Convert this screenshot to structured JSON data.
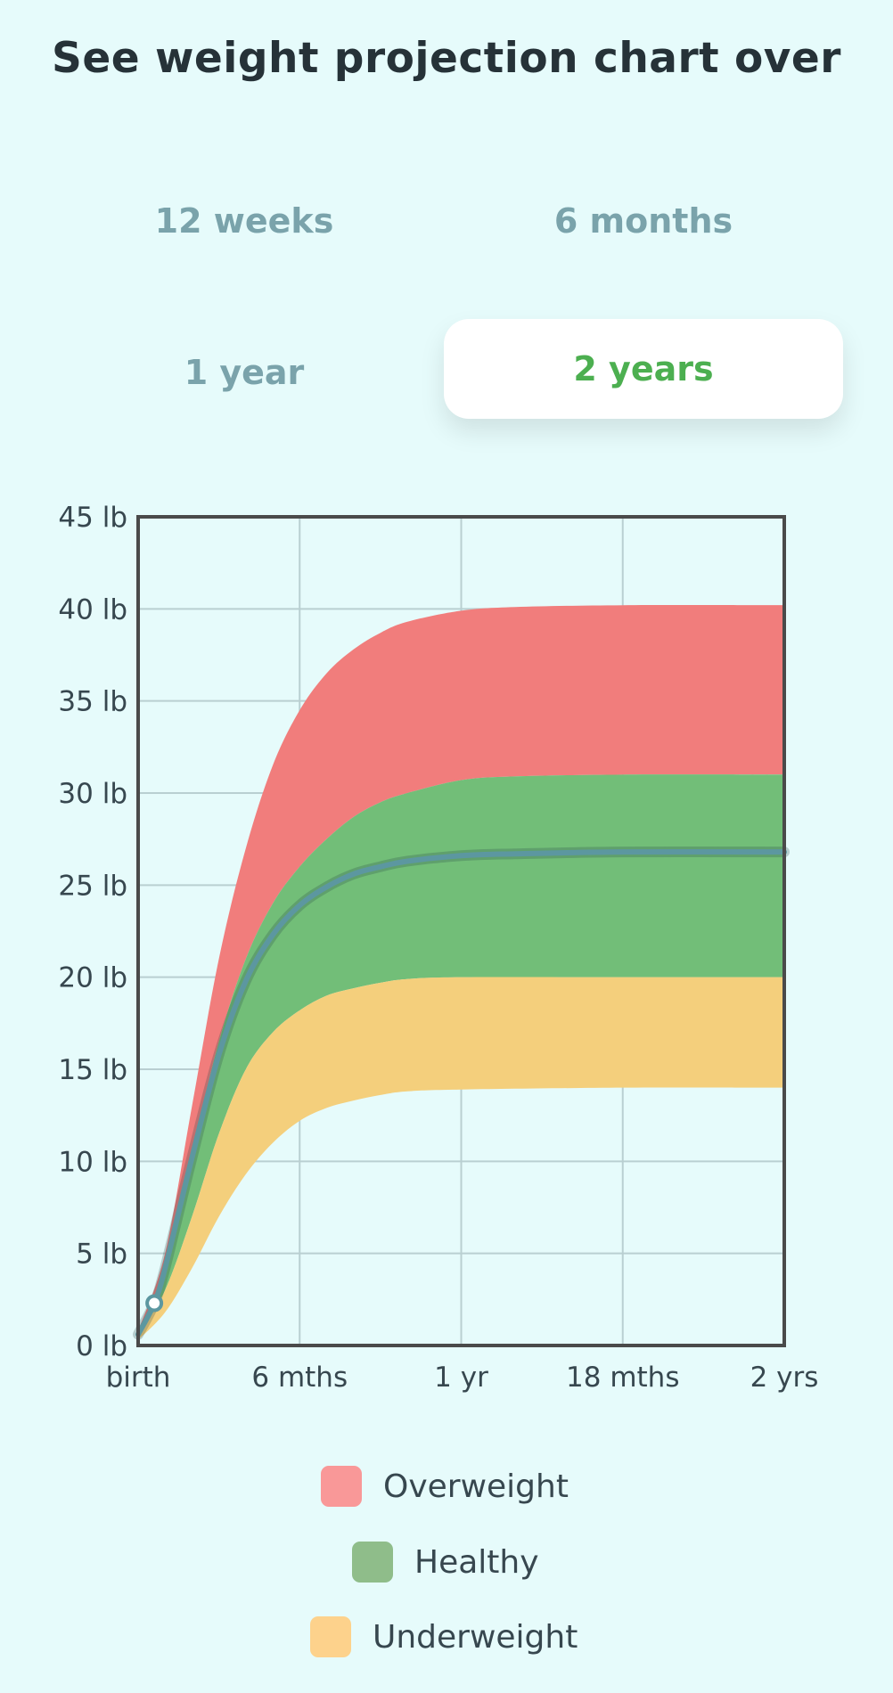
{
  "title": "See weight projection chart over",
  "tabs": [
    {
      "label": "12 weeks",
      "selected": false
    },
    {
      "label": "6 months",
      "selected": false
    },
    {
      "label": "1 year",
      "selected": false
    },
    {
      "label": "2 years",
      "selected": true
    }
  ],
  "colors": {
    "background": "#e6fbfb",
    "overweight": "#f17d7c",
    "healthy": "#72be78",
    "underweight": "#f4cf7c",
    "line": "#5c97a0",
    "selected_tab_text": "#4caf50",
    "tab_text": "#7aa3ab"
  },
  "chart_data": {
    "type": "area",
    "x_ticks": [
      "birth",
      "6 mths",
      "1 yr",
      "18 mths",
      "2 yrs"
    ],
    "y_ticks": [
      "0 lb",
      "5 lb",
      "10 lb",
      "15 lb",
      "20 lb",
      "25 lb",
      "30 lb",
      "35 lb",
      "40 lb",
      "45 lb"
    ],
    "xlim": [
      0,
      24
    ],
    "ylim": [
      0,
      45
    ],
    "grid": true,
    "legend_position": "bottom",
    "series": [
      {
        "name": "Overweight",
        "color": "#f17d7c",
        "points": [
          [
            0,
            0.8
          ],
          [
            1,
            5
          ],
          [
            2,
            13
          ],
          [
            3,
            21
          ],
          [
            4,
            27
          ],
          [
            5,
            31.5
          ],
          [
            6,
            34.5
          ],
          [
            7,
            36.5
          ],
          [
            8,
            37.8
          ],
          [
            9,
            38.7
          ],
          [
            10,
            39.3
          ],
          [
            12,
            39.9
          ],
          [
            14,
            40.1
          ],
          [
            18,
            40.2
          ],
          [
            24,
            40.2
          ]
        ]
      },
      {
        "name": "Healthy",
        "color": "#72be78",
        "points": [
          [
            0,
            0.6
          ],
          [
            1,
            4
          ],
          [
            2,
            10.5
          ],
          [
            3,
            16.5
          ],
          [
            4,
            21
          ],
          [
            5,
            24
          ],
          [
            6,
            26
          ],
          [
            7,
            27.5
          ],
          [
            8,
            28.7
          ],
          [
            9,
            29.5
          ],
          [
            10,
            30
          ],
          [
            12,
            30.7
          ],
          [
            14,
            30.9
          ],
          [
            18,
            31
          ],
          [
            24,
            31
          ]
        ]
      },
      {
        "name": "Underweight",
        "color": "#f4cf7c",
        "points": [
          [
            0,
            0.5
          ],
          [
            1,
            3
          ],
          [
            2,
            7
          ],
          [
            3,
            11.5
          ],
          [
            4,
            15
          ],
          [
            5,
            17
          ],
          [
            6,
            18.2
          ],
          [
            7,
            19
          ],
          [
            8,
            19.4
          ],
          [
            9,
            19.7
          ],
          [
            10,
            19.9
          ],
          [
            12,
            20
          ],
          [
            18,
            20
          ],
          [
            24,
            20
          ]
        ]
      }
    ],
    "lower_bound": [
      [
        0,
        0.3
      ],
      [
        1,
        1.8
      ],
      [
        2,
        4.2
      ],
      [
        3,
        7
      ],
      [
        4,
        9.3
      ],
      [
        5,
        11
      ],
      [
        6,
        12.2
      ],
      [
        7,
        12.9
      ],
      [
        8,
        13.3
      ],
      [
        9,
        13.6
      ],
      [
        10,
        13.8
      ],
      [
        12,
        13.9
      ],
      [
        18,
        14
      ],
      [
        24,
        14
      ]
    ],
    "projection_line": {
      "points": [
        [
          0,
          0.6
        ],
        [
          0.6,
          2.3
        ],
        [
          1,
          4.2
        ],
        [
          2,
          10.2
        ],
        [
          3,
          15.8
        ],
        [
          4,
          19.8
        ],
        [
          5,
          22.3
        ],
        [
          6,
          23.9
        ],
        [
          7,
          24.9
        ],
        [
          8,
          25.6
        ],
        [
          9,
          26
        ],
        [
          10,
          26.3
        ],
        [
          12,
          26.6
        ],
        [
          14,
          26.7
        ],
        [
          18,
          26.8
        ],
        [
          24,
          26.8
        ]
      ],
      "marker": [
        0.6,
        2.3
      ]
    }
  },
  "legend": [
    {
      "label": "Overweight",
      "color": "#f99898"
    },
    {
      "label": "Healthy",
      "color": "#8fbd8a"
    },
    {
      "label": "Underweight",
      "color": "#fdd28c"
    }
  ]
}
